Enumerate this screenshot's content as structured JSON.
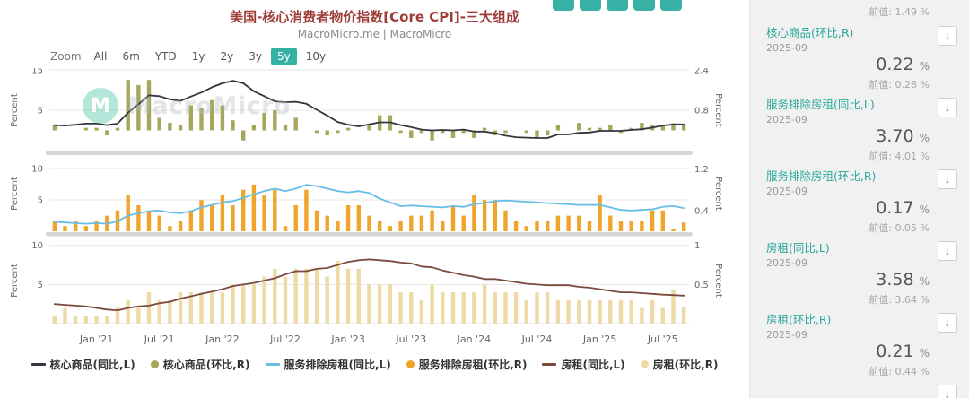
{
  "header": {
    "title": "美国-核心消费者物价指数[Core CPI]-三大组成",
    "subtitle": "MacroMicro.me | MacroMicro"
  },
  "colors": {
    "title": "#9d3b37",
    "accent_teal": "#35b1a5",
    "grid": "#e7e7e7",
    "divider": "#d6d6d6"
  },
  "toolbar": {
    "zoom_label": "Zoom",
    "buttons": [
      "All",
      "6m",
      "YTD",
      "1y",
      "2y",
      "3y",
      "5y",
      "10y"
    ],
    "selected": "5y"
  },
  "watermark": {
    "logo_letter": "M",
    "text": "MacroMicro"
  },
  "icons": {
    "download": "↓"
  },
  "chart_data": {
    "type": "combo-multi-panel",
    "categories": [
      "2020-09",
      "2020-10",
      "2020-11",
      "2020-12",
      "2021-01",
      "2021-02",
      "2021-03",
      "2021-04",
      "2021-05",
      "2021-06",
      "2021-07",
      "2021-08",
      "2021-09",
      "2021-10",
      "2021-11",
      "2021-12",
      "2022-01",
      "2022-02",
      "2022-03",
      "2022-04",
      "2022-05",
      "2022-06",
      "2022-07",
      "2022-08",
      "2022-09",
      "2022-10",
      "2022-11",
      "2022-12",
      "2023-01",
      "2023-02",
      "2023-03",
      "2023-04",
      "2023-05",
      "2023-06",
      "2023-07",
      "2023-08",
      "2023-09",
      "2023-10",
      "2023-11",
      "2023-12",
      "2024-01",
      "2024-02",
      "2024-03",
      "2024-04",
      "2024-05",
      "2024-06",
      "2024-07",
      "2024-08",
      "2024-09",
      "2024-10",
      "2024-11",
      "2024-12",
      "2025-01",
      "2025-02",
      "2025-03",
      "2025-04",
      "2025-05",
      "2025-06",
      "2025-07",
      "2025-08",
      "2025-09"
    ],
    "x_tick_positions": [
      4,
      10,
      16,
      22,
      28,
      34,
      40,
      46,
      52,
      58
    ],
    "x_tick_labels": [
      "Jan '21",
      "Jul '21",
      "Jan '22",
      "Jul '22",
      "Jan '23",
      "Jul '23",
      "Jan '24",
      "Jul '24",
      "Jan '25",
      "Jul '25"
    ],
    "panels": [
      {
        "left_axis_title": "Percent",
        "right_axis_title": "Percent",
        "left_range": [
          -5,
          15
        ],
        "right_range": [
          -0.8,
          2.4
        ],
        "left_ticks": [
          15,
          5
        ],
        "right_ticks": [
          2.4,
          0.8
        ],
        "series": [
          {
            "name": "核心商品(同比,L)",
            "type": "line",
            "axis": "left",
            "color": "#33343e",
            "values": [
              1.3,
              1.2,
              1.4,
              1.7,
              1.7,
              1.3,
              1.7,
              4.4,
              6.5,
              8.7,
              8.5,
              7.7,
              7.3,
              8.4,
              9.4,
              10.7,
              11.7,
              12.3,
              11.7,
              9.7,
              8.5,
              7.2,
              7.0,
              7.1,
              6.6,
              5.1,
              3.7,
              2.1,
              1.4,
              1.0,
              1.5,
              2.0,
              2.0,
              1.3,
              0.8,
              0.2,
              0.0,
              0.1,
              0.0,
              0.2,
              -0.3,
              -0.3,
              -0.7,
              -1.3,
              -1.7,
              -1.8,
              -1.9,
              -1.9,
              -1.0,
              -1.0,
              -0.6,
              -0.5,
              -0.1,
              -0.1,
              -0.1,
              0.1,
              0.3,
              0.7,
              1.2,
              1.5,
              1.5
            ]
          },
          {
            "name": "核心商品(环比,R)",
            "type": "bar",
            "axis": "right",
            "color": "#a6a75c",
            "values": [
              0.2,
              0.0,
              0.0,
              0.1,
              0.1,
              -0.2,
              0.1,
              2.0,
              1.8,
              2.0,
              0.5,
              0.3,
              0.2,
              1.0,
              0.9,
              1.2,
              1.0,
              0.4,
              -0.4,
              0.2,
              0.7,
              0.8,
              0.2,
              0.5,
              0.0,
              -0.1,
              -0.2,
              -0.1,
              0.1,
              0.0,
              0.2,
              0.6,
              0.6,
              -0.1,
              -0.3,
              -0.1,
              -0.4,
              -0.1,
              -0.3,
              -0.1,
              -0.3,
              0.1,
              -0.2,
              -0.1,
              0.0,
              -0.1,
              -0.3,
              -0.2,
              0.2,
              0.0,
              0.3,
              0.1,
              0.1,
              0.2,
              -0.1,
              0.1,
              0.3,
              0.2,
              0.2,
              0.28,
              0.22
            ]
          }
        ]
      },
      {
        "left_axis_title": "Percent",
        "right_axis_title": "Percent",
        "left_range": [
          0,
          12
        ],
        "right_range": [
          0,
          1.45
        ],
        "left_ticks": [
          10,
          5
        ],
        "right_ticks": [
          1.2,
          0.4
        ],
        "series": [
          {
            "name": "服务排除房租(同比,L)",
            "type": "line",
            "axis": "left",
            "color": "#67bde6",
            "values": [
              1.5,
              1.4,
              1.3,
              1.2,
              1.3,
              1.2,
              1.6,
              2.5,
              2.9,
              3.2,
              3.3,
              3.0,
              2.9,
              3.2,
              3.8,
              4.2,
              4.6,
              4.8,
              5.3,
              5.9,
              6.4,
              6.8,
              6.4,
              6.8,
              7.4,
              7.2,
              6.8,
              6.4,
              6.2,
              6.4,
              6.1,
              5.2,
              4.6,
              4.0,
              4.1,
              4.0,
              3.9,
              3.8,
              4.0,
              3.9,
              4.3,
              4.5,
              4.8,
              4.9,
              4.8,
              4.7,
              4.6,
              4.5,
              4.4,
              4.3,
              4.2,
              4.2,
              4.2,
              3.8,
              3.4,
              3.3,
              3.4,
              3.5,
              3.9,
              4.01,
              3.7
            ]
          },
          {
            "name": "服务排除房租(环比,R)",
            "type": "bar",
            "axis": "right",
            "color": "#f0a42c",
            "values": [
              0.2,
              0.1,
              0.2,
              0.1,
              0.2,
              0.3,
              0.4,
              0.7,
              0.5,
              0.4,
              0.3,
              0.1,
              0.2,
              0.4,
              0.6,
              0.5,
              0.7,
              0.5,
              0.8,
              0.9,
              0.7,
              0.8,
              0.1,
              0.5,
              0.8,
              0.4,
              0.3,
              0.2,
              0.5,
              0.5,
              0.3,
              0.2,
              0.1,
              0.2,
              0.3,
              0.3,
              0.4,
              0.2,
              0.5,
              0.3,
              0.7,
              0.6,
              0.6,
              0.4,
              0.2,
              0.1,
              0.2,
              0.2,
              0.3,
              0.3,
              0.3,
              0.2,
              0.7,
              0.3,
              0.2,
              0.2,
              0.2,
              0.4,
              0.4,
              0.05,
              0.17
            ]
          }
        ]
      },
      {
        "left_axis_title": "Percent",
        "right_axis_title": "Percent",
        "left_range": [
          0,
          11
        ],
        "right_range": [
          0,
          1.1
        ],
        "left_ticks": [
          10,
          5
        ],
        "right_ticks": [
          1,
          0.5
        ],
        "series": [
          {
            "name": "房租(同比,L)",
            "type": "line",
            "axis": "left",
            "color": "#7a4b3d",
            "values": [
              2.5,
              2.4,
              2.3,
              2.2,
              2.0,
              1.8,
              1.7,
              2.0,
              2.2,
              2.3,
              2.6,
              2.8,
              3.2,
              3.5,
              3.8,
              4.1,
              4.4,
              4.8,
              5.0,
              5.2,
              5.5,
              5.8,
              6.3,
              6.7,
              6.7,
              7.0,
              7.1,
              7.5,
              7.9,
              8.1,
              8.2,
              8.1,
              8.0,
              7.8,
              7.7,
              7.3,
              7.2,
              6.8,
              6.5,
              6.2,
              6.0,
              5.7,
              5.7,
              5.5,
              5.3,
              5.1,
              5.0,
              4.9,
              4.9,
              4.9,
              4.7,
              4.6,
              4.4,
              4.2,
              4.0,
              4.0,
              3.9,
              3.8,
              3.7,
              3.64,
              3.58
            ]
          },
          {
            "name": "房租(环比,R)",
            "type": "bar",
            "axis": "right",
            "color": "#eddaa5",
            "values": [
              0.1,
              0.2,
              0.1,
              0.1,
              0.1,
              0.1,
              0.2,
              0.3,
              0.2,
              0.4,
              0.3,
              0.3,
              0.4,
              0.4,
              0.4,
              0.4,
              0.4,
              0.5,
              0.5,
              0.5,
              0.6,
              0.7,
              0.6,
              0.7,
              0.7,
              0.7,
              0.6,
              0.8,
              0.7,
              0.7,
              0.5,
              0.5,
              0.5,
              0.4,
              0.4,
              0.3,
              0.5,
              0.4,
              0.4,
              0.4,
              0.4,
              0.5,
              0.4,
              0.4,
              0.4,
              0.3,
              0.4,
              0.4,
              0.3,
              0.3,
              0.3,
              0.3,
              0.3,
              0.3,
              0.3,
              0.3,
              0.2,
              0.3,
              0.2,
              0.44,
              0.21
            ]
          }
        ]
      }
    ]
  },
  "legend": {
    "items": [
      {
        "label": "核心商品(同比,L)",
        "marker": "line",
        "color": "#33343e"
      },
      {
        "label": "核心商品(环比,R)",
        "marker": "bar",
        "color": "#a6a75c"
      },
      {
        "label": "服务排除房租(同比,L)",
        "marker": "line",
        "color": "#67bde6"
      },
      {
        "label": "服务排除房租(环比,R)",
        "marker": "bar",
        "color": "#f0a42c"
      },
      {
        "label": "房租(同比,L)",
        "marker": "line",
        "color": "#7a4b3d"
      },
      {
        "label": "房租(环比,R)",
        "marker": "bar",
        "color": "#eddaa5"
      }
    ]
  },
  "sidebar": {
    "partial_top_prev": "前值: 1.49 %",
    "entries": [
      {
        "name": "核心商品(环比,R)",
        "date": "2025-09",
        "value": "0.22",
        "unit": "%",
        "prev_label": "前值: 0.28 %"
      },
      {
        "name": "服务排除房租(同比,L)",
        "date": "2025-09",
        "value": "3.70",
        "unit": "%",
        "prev_label": "前值: 4.01 %"
      },
      {
        "name": "服务排除房租(环比,R)",
        "date": "2025-09",
        "value": "0.17",
        "unit": "%",
        "prev_label": "前值: 0.05 %"
      },
      {
        "name": "房租(同比,L)",
        "date": "2025-09",
        "value": "3.58",
        "unit": "%",
        "prev_label": "前值: 3.64 %"
      },
      {
        "name": "房租(环比,R)",
        "date": "2025-09",
        "value": "0.21",
        "unit": "%",
        "prev_label": "前值: 0.44 %"
      }
    ]
  }
}
